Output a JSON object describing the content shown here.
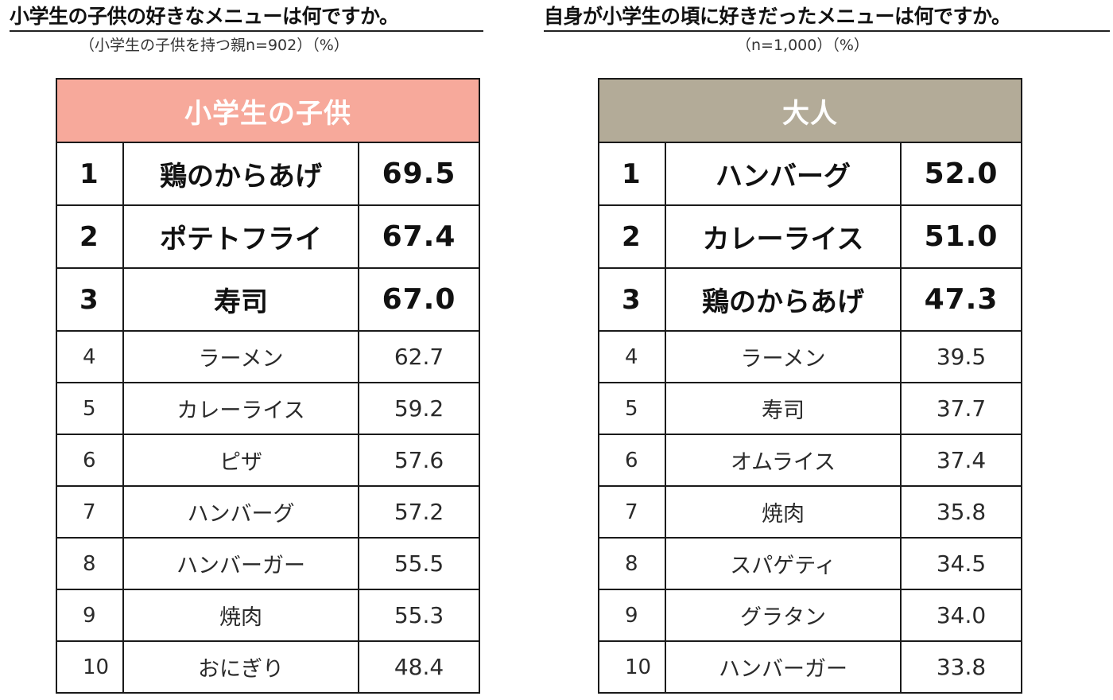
{
  "chart_data": [
    {
      "type": "table",
      "title": "小学生の子供の好きなメニューは何ですか。",
      "subtitle": "（小学生の子供を持つ親n=902）（%）",
      "header": "小学生の子供",
      "header_color": "#f7a99b",
      "rows": [
        {
          "rank": "1",
          "name": "鶏のからあげ",
          "value": "69.5"
        },
        {
          "rank": "2",
          "name": "ポテトフライ",
          "value": "67.4"
        },
        {
          "rank": "3",
          "name": "寿司",
          "value": "67.0"
        },
        {
          "rank": "4",
          "name": "ラーメン",
          "value": "62.7"
        },
        {
          "rank": "5",
          "name": "カレーライス",
          "value": "59.2"
        },
        {
          "rank": "6",
          "name": "ピザ",
          "value": "57.6"
        },
        {
          "rank": "7",
          "name": "ハンバーグ",
          "value": "57.2"
        },
        {
          "rank": "8",
          "name": "ハンバーガー",
          "value": "55.5"
        },
        {
          "rank": "9",
          "name": "焼肉",
          "value": "55.3"
        },
        {
          "rank": "10",
          "name": "おにぎり",
          "value": "48.4"
        }
      ]
    },
    {
      "type": "table",
      "title": "自身が小学生の頃に好きだったメニューは何ですか。",
      "subtitle": "（n=1,000）（%）",
      "header": "大人",
      "header_color": "#b3ab98",
      "rows": [
        {
          "rank": "1",
          "name": "ハンバーグ",
          "value": "52.0"
        },
        {
          "rank": "2",
          "name": "カレーライス",
          "value": "51.0"
        },
        {
          "rank": "3",
          "name": "鶏のからあげ",
          "value": "47.3"
        },
        {
          "rank": "4",
          "name": "ラーメン",
          "value": "39.5"
        },
        {
          "rank": "5",
          "name": "寿司",
          "value": "37.7"
        },
        {
          "rank": "6",
          "name": "オムライス",
          "value": "37.4"
        },
        {
          "rank": "7",
          "name": "焼肉",
          "value": "35.8"
        },
        {
          "rank": "8",
          "name": "スパゲティ",
          "value": "34.5"
        },
        {
          "rank": "9",
          "name": "グラタン",
          "value": "34.0"
        },
        {
          "rank": "10",
          "name": "ハンバーガー",
          "value": "33.8"
        }
      ]
    }
  ]
}
